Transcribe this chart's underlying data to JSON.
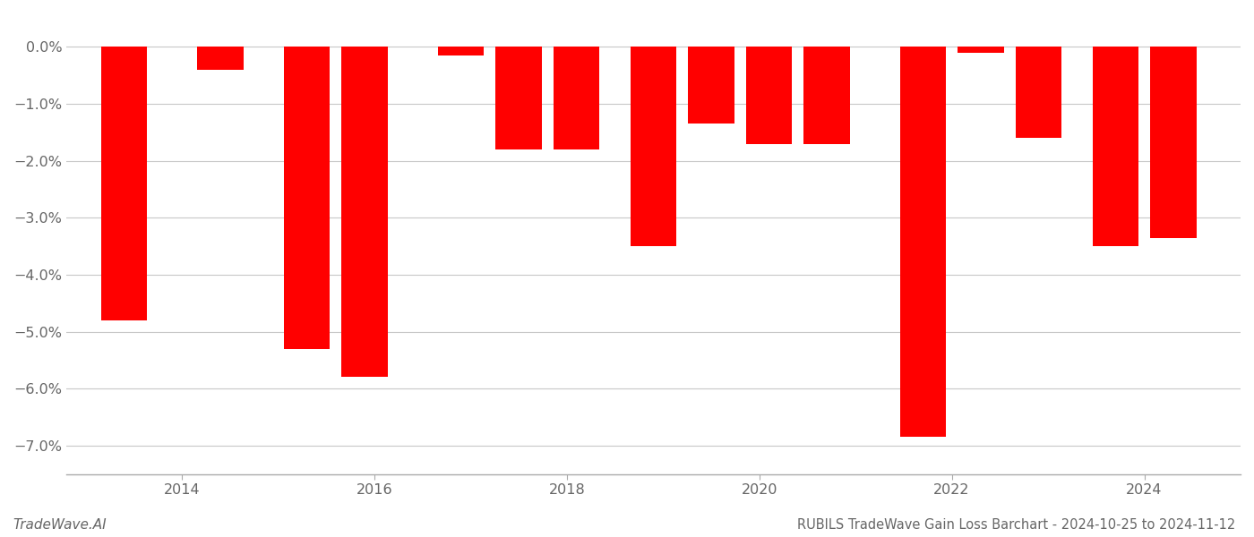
{
  "years": [
    2013.4,
    2014.4,
    2015.3,
    2015.9,
    2016.9,
    2017.5,
    2018.1,
    2018.9,
    2019.5,
    2020.1,
    2020.7,
    2021.7,
    2022.3,
    2022.9,
    2023.7,
    2024.3
  ],
  "values": [
    -4.8,
    -0.4,
    -5.3,
    -5.8,
    -0.15,
    -1.8,
    -1.8,
    -3.5,
    -1.35,
    -1.7,
    -1.7,
    -6.85,
    -0.1,
    -1.6,
    -3.5,
    -3.35
  ],
  "bar_color": "#ff0000",
  "title": "RUBILS TradeWave Gain Loss Barchart - 2024-10-25 to 2024-11-12",
  "watermark": "TradeWave.AI",
  "ylim": [
    -7.5,
    0.4
  ],
  "yticks": [
    0.0,
    -1.0,
    -2.0,
    -3.0,
    -4.0,
    -5.0,
    -6.0,
    -7.0
  ],
  "xlim": [
    2012.8,
    2025.0
  ],
  "xticks": [
    2014,
    2016,
    2018,
    2020,
    2022,
    2024
  ],
  "background_color": "#ffffff",
  "grid_color": "#c8c8c8",
  "axis_color": "#aaaaaa",
  "title_fontsize": 10.5,
  "watermark_fontsize": 11,
  "tick_fontsize": 11.5,
  "bar_width": 0.48
}
